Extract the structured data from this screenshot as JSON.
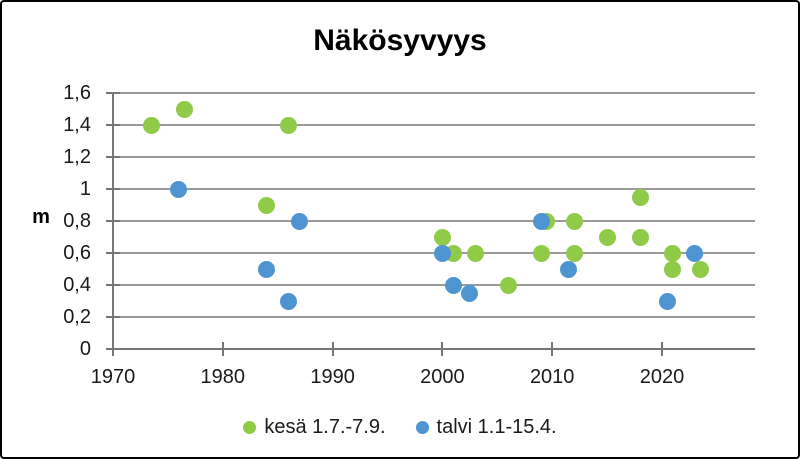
{
  "chart_data": {
    "type": "scatter",
    "title": "Näkösyvyys",
    "xlabel": "",
    "ylabel": "m",
    "xlim": [
      1970,
      2028.5
    ],
    "ylim": [
      0,
      1.6
    ],
    "x_ticks": [
      1970,
      1980,
      1990,
      2000,
      2010,
      2020
    ],
    "y_ticks": [
      0,
      0.2,
      0.4,
      0.6,
      0.8,
      1,
      1.2,
      1.4,
      1.6
    ],
    "y_tick_labels": [
      "0",
      "0,2",
      "0,4",
      "0,6",
      "0,8",
      "1",
      "1,2",
      "1,4",
      "1,6"
    ],
    "decimal_separator": ",",
    "grid": "horizontal",
    "grid_color": "#9B9B9B",
    "axis_color": "#767676",
    "legend_position": "bottom",
    "series": [
      {
        "name": "kesä 1.7.-7.9.",
        "color": "#8FCB47",
        "points": [
          [
            1973.5,
            1.4
          ],
          [
            1976.5,
            1.5
          ],
          [
            1984,
            0.9
          ],
          [
            1986,
            1.4
          ],
          [
            2000,
            0.7
          ],
          [
            2001,
            0.6
          ],
          [
            2003,
            0.6
          ],
          [
            2006,
            0.4
          ],
          [
            2009,
            0.6
          ],
          [
            2009.5,
            0.8
          ],
          [
            2012,
            0.6
          ],
          [
            2012,
            0.8
          ],
          [
            2015,
            0.7
          ],
          [
            2018,
            0.7
          ],
          [
            2018,
            0.95
          ],
          [
            2021,
            0.6
          ],
          [
            2021,
            0.5
          ],
          [
            2023.5,
            0.5
          ]
        ]
      },
      {
        "name": "talvi 1.1-15.4.",
        "color": "#4D94D0",
        "points": [
          [
            1976,
            1.0
          ],
          [
            1984,
            0.5
          ],
          [
            1986,
            0.3
          ],
          [
            1987,
            0.8
          ],
          [
            2000,
            0.6
          ],
          [
            2001,
            0.4
          ],
          [
            2002.5,
            0.35
          ],
          [
            2009,
            0.8
          ],
          [
            2011.5,
            0.5
          ],
          [
            2020.5,
            0.3
          ],
          [
            2023,
            0.6
          ]
        ]
      }
    ]
  }
}
